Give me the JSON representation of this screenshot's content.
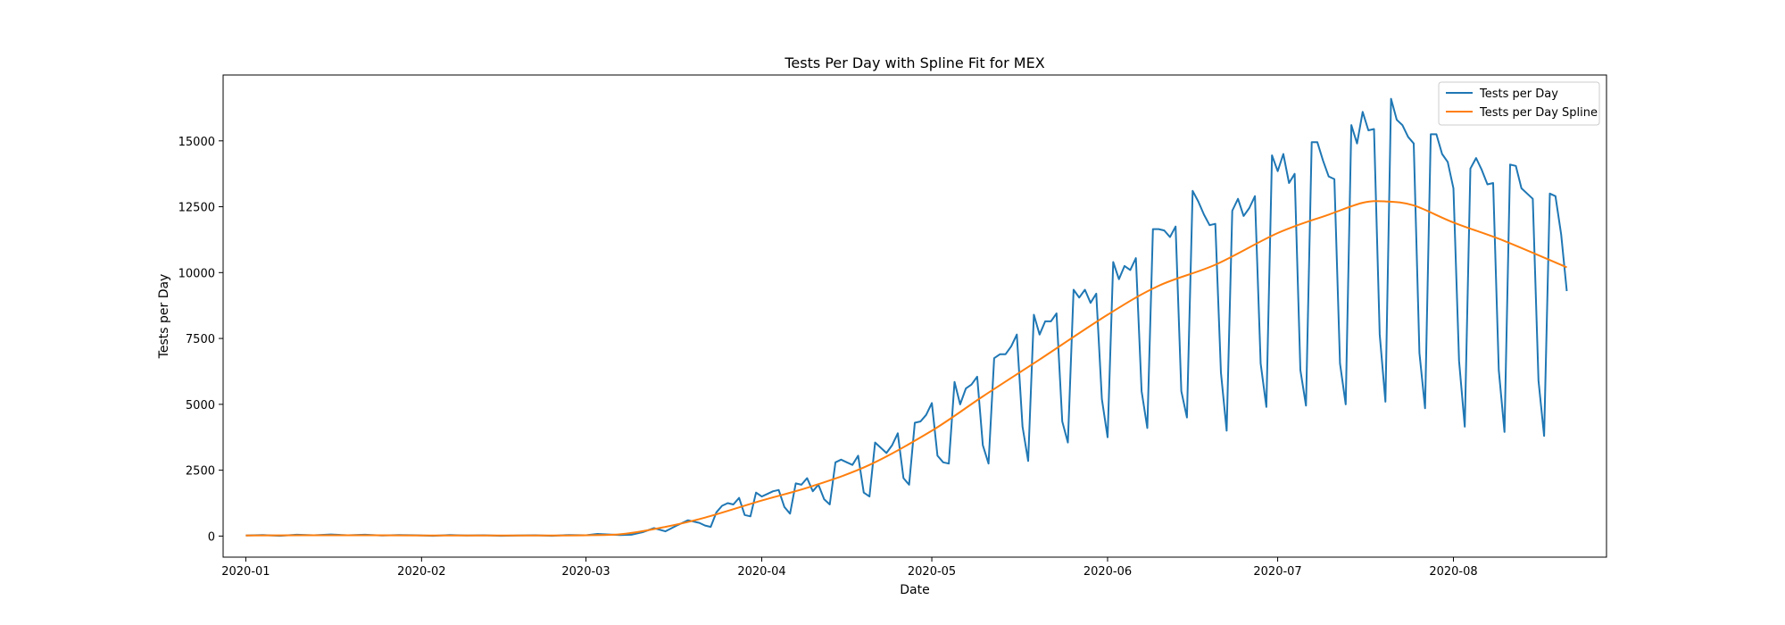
{
  "chart_data": {
    "type": "line",
    "title": "Tests Per Day with Spline Fit for MEX",
    "xlabel": "Date",
    "ylabel": "Tests per Day",
    "x_range": [
      "2019-12-28",
      "2020-08-28"
    ],
    "ylim": [
      -800,
      17500
    ],
    "grid": false,
    "legend_position": "top-right",
    "x_ticks": [
      {
        "date": "2020-01-01",
        "label": "2020-01"
      },
      {
        "date": "2020-02-01",
        "label": "2020-02"
      },
      {
        "date": "2020-03-01",
        "label": "2020-03"
      },
      {
        "date": "2020-04-01",
        "label": "2020-04"
      },
      {
        "date": "2020-05-01",
        "label": "2020-05"
      },
      {
        "date": "2020-06-01",
        "label": "2020-06"
      },
      {
        "date": "2020-07-01",
        "label": "2020-07"
      },
      {
        "date": "2020-08-01",
        "label": "2020-08"
      }
    ],
    "y_ticks": [
      {
        "value": 0,
        "label": "0"
      },
      {
        "value": 2500,
        "label": "2500"
      },
      {
        "value": 5000,
        "label": "5000"
      },
      {
        "value": 7500,
        "label": "7500"
      },
      {
        "value": 10000,
        "label": "10000"
      },
      {
        "value": 12500,
        "label": "12500"
      },
      {
        "value": 15000,
        "label": "15000"
      }
    ],
    "series": [
      {
        "name": "Tests per Day",
        "color": "#1f77b4",
        "points": [
          [
            "2020-01-01",
            20
          ],
          [
            "2020-01-04",
            40
          ],
          [
            "2020-01-07",
            10
          ],
          [
            "2020-01-10",
            50
          ],
          [
            "2020-01-13",
            30
          ],
          [
            "2020-01-16",
            60
          ],
          [
            "2020-01-19",
            30
          ],
          [
            "2020-01-22",
            50
          ],
          [
            "2020-01-25",
            20
          ],
          [
            "2020-01-28",
            40
          ],
          [
            "2020-01-31",
            30
          ],
          [
            "2020-02-03",
            10
          ],
          [
            "2020-02-06",
            40
          ],
          [
            "2020-02-09",
            20
          ],
          [
            "2020-02-12",
            30
          ],
          [
            "2020-02-15",
            10
          ],
          [
            "2020-02-18",
            20
          ],
          [
            "2020-02-21",
            30
          ],
          [
            "2020-02-24",
            10
          ],
          [
            "2020-02-27",
            40
          ],
          [
            "2020-03-01",
            30
          ],
          [
            "2020-03-03",
            80
          ],
          [
            "2020-03-05",
            60
          ],
          [
            "2020-03-07",
            40
          ],
          [
            "2020-03-09",
            50
          ],
          [
            "2020-03-11",
            150
          ],
          [
            "2020-03-13",
            300
          ],
          [
            "2020-03-15",
            180
          ],
          [
            "2020-03-17",
            400
          ],
          [
            "2020-03-19",
            600
          ],
          [
            "2020-03-21",
            500
          ],
          [
            "2020-03-22",
            400
          ],
          [
            "2020-03-23",
            350
          ],
          [
            "2020-03-24",
            900
          ],
          [
            "2020-03-25",
            1150
          ],
          [
            "2020-03-26",
            1250
          ],
          [
            "2020-03-27",
            1200
          ],
          [
            "2020-03-28",
            1450
          ],
          [
            "2020-03-29",
            800
          ],
          [
            "2020-03-30",
            750
          ],
          [
            "2020-03-31",
            1650
          ],
          [
            "2020-04-01",
            1500
          ],
          [
            "2020-04-02",
            1600
          ],
          [
            "2020-04-03",
            1700
          ],
          [
            "2020-04-04",
            1750
          ],
          [
            "2020-04-05",
            1100
          ],
          [
            "2020-04-06",
            850
          ],
          [
            "2020-04-07",
            2000
          ],
          [
            "2020-04-08",
            1950
          ],
          [
            "2020-04-09",
            2200
          ],
          [
            "2020-04-10",
            1700
          ],
          [
            "2020-04-11",
            1950
          ],
          [
            "2020-04-12",
            1400
          ],
          [
            "2020-04-13",
            1200
          ],
          [
            "2020-04-14",
            2800
          ],
          [
            "2020-04-15",
            2900
          ],
          [
            "2020-04-16",
            2800
          ],
          [
            "2020-04-17",
            2700
          ],
          [
            "2020-04-18",
            3050
          ],
          [
            "2020-04-19",
            1650
          ],
          [
            "2020-04-20",
            1500
          ],
          [
            "2020-04-21",
            3550
          ],
          [
            "2020-04-22",
            3350
          ],
          [
            "2020-04-23",
            3150
          ],
          [
            "2020-04-24",
            3450
          ],
          [
            "2020-04-25",
            3900
          ],
          [
            "2020-04-26",
            2200
          ],
          [
            "2020-04-27",
            1950
          ],
          [
            "2020-04-28",
            4300
          ],
          [
            "2020-04-29",
            4350
          ],
          [
            "2020-04-30",
            4600
          ],
          [
            "2020-05-01",
            5050
          ],
          [
            "2020-05-02",
            3050
          ],
          [
            "2020-05-03",
            2800
          ],
          [
            "2020-05-04",
            2750
          ],
          [
            "2020-05-05",
            5850
          ],
          [
            "2020-05-06",
            5000
          ],
          [
            "2020-05-07",
            5600
          ],
          [
            "2020-05-08",
            5750
          ],
          [
            "2020-05-09",
            6050
          ],
          [
            "2020-05-10",
            3450
          ],
          [
            "2020-05-11",
            2750
          ],
          [
            "2020-05-12",
            6750
          ],
          [
            "2020-05-13",
            6900
          ],
          [
            "2020-05-14",
            6900
          ],
          [
            "2020-05-15",
            7200
          ],
          [
            "2020-05-16",
            7650
          ],
          [
            "2020-05-17",
            4150
          ],
          [
            "2020-05-18",
            2850
          ],
          [
            "2020-05-19",
            8400
          ],
          [
            "2020-05-20",
            7650
          ],
          [
            "2020-05-21",
            8150
          ],
          [
            "2020-05-22",
            8150
          ],
          [
            "2020-05-23",
            8450
          ],
          [
            "2020-05-24",
            4350
          ],
          [
            "2020-05-25",
            3550
          ],
          [
            "2020-05-26",
            9350
          ],
          [
            "2020-05-27",
            9050
          ],
          [
            "2020-05-28",
            9350
          ],
          [
            "2020-05-29",
            8850
          ],
          [
            "2020-05-30",
            9200
          ],
          [
            "2020-05-31",
            5200
          ],
          [
            "2020-06-01",
            3750
          ],
          [
            "2020-06-02",
            10400
          ],
          [
            "2020-06-03",
            9750
          ],
          [
            "2020-06-04",
            10250
          ],
          [
            "2020-06-05",
            10100
          ],
          [
            "2020-06-06",
            10550
          ],
          [
            "2020-06-07",
            5500
          ],
          [
            "2020-06-08",
            4100
          ],
          [
            "2020-06-09",
            11650
          ],
          [
            "2020-06-10",
            11650
          ],
          [
            "2020-06-11",
            11600
          ],
          [
            "2020-06-12",
            11350
          ],
          [
            "2020-06-13",
            11750
          ],
          [
            "2020-06-14",
            5500
          ],
          [
            "2020-06-15",
            4500
          ],
          [
            "2020-06-16",
            13100
          ],
          [
            "2020-06-17",
            12700
          ],
          [
            "2020-06-18",
            12200
          ],
          [
            "2020-06-19",
            11800
          ],
          [
            "2020-06-20",
            11850
          ],
          [
            "2020-06-21",
            6200
          ],
          [
            "2020-06-22",
            4000
          ],
          [
            "2020-06-23",
            12350
          ],
          [
            "2020-06-24",
            12800
          ],
          [
            "2020-06-25",
            12150
          ],
          [
            "2020-06-26",
            12450
          ],
          [
            "2020-06-27",
            12900
          ],
          [
            "2020-06-28",
            6550
          ],
          [
            "2020-06-29",
            4900
          ],
          [
            "2020-06-30",
            14450
          ],
          [
            "2020-07-01",
            13850
          ],
          [
            "2020-07-02",
            14500
          ],
          [
            "2020-07-03",
            13400
          ],
          [
            "2020-07-04",
            13750
          ],
          [
            "2020-07-05",
            6300
          ],
          [
            "2020-07-06",
            4950
          ],
          [
            "2020-07-07",
            14950
          ],
          [
            "2020-07-08",
            14950
          ],
          [
            "2020-07-09",
            14250
          ],
          [
            "2020-07-10",
            13650
          ],
          [
            "2020-07-11",
            13550
          ],
          [
            "2020-07-12",
            6550
          ],
          [
            "2020-07-13",
            5000
          ],
          [
            "2020-07-14",
            15600
          ],
          [
            "2020-07-15",
            14900
          ],
          [
            "2020-07-16",
            16100
          ],
          [
            "2020-07-17",
            15400
          ],
          [
            "2020-07-18",
            15450
          ],
          [
            "2020-07-19",
            7650
          ],
          [
            "2020-07-20",
            5100
          ],
          [
            "2020-07-21",
            16600
          ],
          [
            "2020-07-22",
            15800
          ],
          [
            "2020-07-23",
            15600
          ],
          [
            "2020-07-24",
            15150
          ],
          [
            "2020-07-25",
            14900
          ],
          [
            "2020-07-26",
            6950
          ],
          [
            "2020-07-27",
            4850
          ],
          [
            "2020-07-28",
            15250
          ],
          [
            "2020-07-29",
            15250
          ],
          [
            "2020-07-30",
            14500
          ],
          [
            "2020-07-31",
            14200
          ],
          [
            "2020-08-01",
            13200
          ],
          [
            "2020-08-02",
            6650
          ],
          [
            "2020-08-03",
            4150
          ],
          [
            "2020-08-04",
            13950
          ],
          [
            "2020-08-05",
            14350
          ],
          [
            "2020-08-06",
            13900
          ],
          [
            "2020-08-07",
            13350
          ],
          [
            "2020-08-08",
            13400
          ],
          [
            "2020-08-09",
            6300
          ],
          [
            "2020-08-10",
            3950
          ],
          [
            "2020-08-11",
            14100
          ],
          [
            "2020-08-12",
            14050
          ],
          [
            "2020-08-13",
            13200
          ],
          [
            "2020-08-14",
            13000
          ],
          [
            "2020-08-15",
            12800
          ],
          [
            "2020-08-16",
            5900
          ],
          [
            "2020-08-17",
            3800
          ],
          [
            "2020-08-18",
            13000
          ],
          [
            "2020-08-19",
            12900
          ],
          [
            "2020-08-20",
            11450
          ],
          [
            "2020-08-21",
            9300
          ]
        ]
      },
      {
        "name": "Tests per Day Spline",
        "color": "#ff7f0e",
        "points": [
          [
            "2020-01-01",
            20
          ],
          [
            "2020-01-15",
            30
          ],
          [
            "2020-02-01",
            25
          ],
          [
            "2020-02-15",
            20
          ],
          [
            "2020-03-01",
            30
          ],
          [
            "2020-03-08",
            90
          ],
          [
            "2020-03-15",
            350
          ],
          [
            "2020-03-22",
            700
          ],
          [
            "2020-04-01",
            1350
          ],
          [
            "2020-04-10",
            1900
          ],
          [
            "2020-04-20",
            2700
          ],
          [
            "2020-05-01",
            4000
          ],
          [
            "2020-05-10",
            5300
          ],
          [
            "2020-05-20",
            6700
          ],
          [
            "2020-06-01",
            8400
          ],
          [
            "2020-06-10",
            9500
          ],
          [
            "2020-06-20",
            10300
          ],
          [
            "2020-07-01",
            11500
          ],
          [
            "2020-07-10",
            12200
          ],
          [
            "2020-07-16",
            12650
          ],
          [
            "2020-07-20",
            12700
          ],
          [
            "2020-07-25",
            12550
          ],
          [
            "2020-08-01",
            11900
          ],
          [
            "2020-08-10",
            11200
          ],
          [
            "2020-08-21",
            10200
          ]
        ]
      }
    ]
  }
}
